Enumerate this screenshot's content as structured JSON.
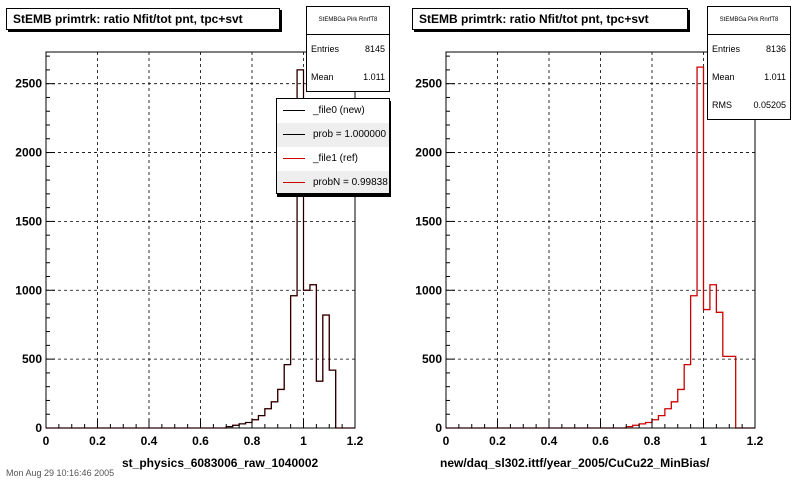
{
  "chart_data": [
    {
      "type": "bar",
      "title": "StEMB primtrk: ratio Nfit/tot pnt, tpc+svt",
      "xlabel": "st_physics_6083006_raw_1040002",
      "ylabel": "",
      "xlim": [
        0,
        1.2
      ],
      "ylim": [
        0,
        2730
      ],
      "xticks": [
        "0",
        "0.2",
        "0.4",
        "0.6",
        "0.8",
        "1",
        "1.2"
      ],
      "yticks": [
        "0",
        "500",
        "1000",
        "1500",
        "2000",
        "2500"
      ],
      "grid": true,
      "bin_width": 0.025,
      "bins_x": [
        0.0,
        0.025,
        0.05,
        0.075,
        0.1,
        0.125,
        0.15,
        0.175,
        0.2,
        0.225,
        0.25,
        0.275,
        0.3,
        0.325,
        0.35,
        0.375,
        0.4,
        0.425,
        0.45,
        0.475,
        0.5,
        0.525,
        0.55,
        0.575,
        0.6,
        0.625,
        0.65,
        0.675,
        0.7,
        0.725,
        0.75,
        0.775,
        0.8,
        0.825,
        0.85,
        0.875,
        0.9,
        0.925,
        0.95,
        0.975,
        1.0,
        1.025,
        1.05,
        1.075,
        1.1,
        1.125
      ],
      "series": [
        {
          "name": "_file1 (ref)",
          "color": "#cc0000",
          "values": [
            0,
            0,
            0,
            0,
            0,
            0,
            0,
            0,
            0,
            0,
            0,
            0,
            0,
            0,
            0,
            0,
            0,
            0,
            0,
            0,
            0,
            0,
            0,
            0,
            0,
            0,
            0,
            0,
            10,
            20,
            30,
            40,
            60,
            90,
            140,
            190,
            280,
            460,
            960,
            2600,
            1000,
            1040,
            340,
            820,
            420,
            0
          ]
        },
        {
          "name": "_file0 (new)",
          "color": "#000000",
          "values": [
            0,
            0,
            0,
            0,
            0,
            0,
            0,
            0,
            0,
            0,
            0,
            0,
            0,
            0,
            0,
            0,
            0,
            0,
            0,
            0,
            0,
            0,
            0,
            0,
            0,
            0,
            0,
            0,
            10,
            20,
            30,
            40,
            60,
            90,
            140,
            190,
            280,
            460,
            960,
            2600,
            1000,
            1040,
            340,
            820,
            420,
            0
          ]
        }
      ],
      "stats": {
        "header": "StEMBGa Pirk RnrfT8",
        "entries_label": "Entries",
        "entries": "8145",
        "mean_label": "Mean",
        "mean": "1.011"
      },
      "legend": [
        {
          "label": "_file0 (new)",
          "color": "#000000"
        },
        {
          "label": "prob = 1.000000",
          "color": "#000000"
        },
        {
          "label": "_file1 (ref)",
          "color": "#cc0000"
        },
        {
          "label": "probN = 0.99838",
          "color": "#cc0000"
        }
      ]
    },
    {
      "type": "bar",
      "title": "StEMB primtrk: ratio Nfit/tot pnt, tpc+svt",
      "xlabel": "new/daq_sl302.ittf/year_2005/CuCu22_MinBias/",
      "ylabel": "",
      "xlim": [
        0,
        1.2
      ],
      "ylim": [
        0,
        2730
      ],
      "xticks": [
        "0",
        "0.2",
        "0.4",
        "0.6",
        "0.8",
        "1",
        "1.2"
      ],
      "yticks": [
        "0",
        "500",
        "1000",
        "1500",
        "2000",
        "2500"
      ],
      "grid": true,
      "bin_width": 0.025,
      "bins_x": [
        0.0,
        0.025,
        0.05,
        0.075,
        0.1,
        0.125,
        0.15,
        0.175,
        0.2,
        0.225,
        0.25,
        0.275,
        0.3,
        0.325,
        0.35,
        0.375,
        0.4,
        0.425,
        0.45,
        0.475,
        0.5,
        0.525,
        0.55,
        0.575,
        0.6,
        0.625,
        0.65,
        0.675,
        0.7,
        0.725,
        0.75,
        0.775,
        0.8,
        0.825,
        0.85,
        0.875,
        0.9,
        0.925,
        0.95,
        0.975,
        1.0,
        1.025,
        1.05,
        1.075,
        1.1,
        1.125
      ],
      "series": [
        {
          "name": "",
          "color": "#cc0000",
          "values": [
            0,
            0,
            0,
            0,
            0,
            0,
            0,
            0,
            0,
            0,
            0,
            0,
            0,
            0,
            0,
            0,
            0,
            0,
            0,
            0,
            0,
            0,
            0,
            0,
            0,
            0,
            0,
            0,
            10,
            20,
            30,
            40,
            60,
            90,
            140,
            190,
            280,
            460,
            960,
            2620,
            860,
            1040,
            840,
            520,
            520,
            0
          ]
        }
      ],
      "stats": {
        "header": "StEMBGa Pirk RnrfT8",
        "entries_label": "Entries",
        "entries": "8136",
        "mean_label": "Mean",
        "mean": "1.011",
        "rms_label": "RMS",
        "rms": "0.05205"
      }
    }
  ],
  "footer": "Mon Aug 29 10:16:46 2005"
}
